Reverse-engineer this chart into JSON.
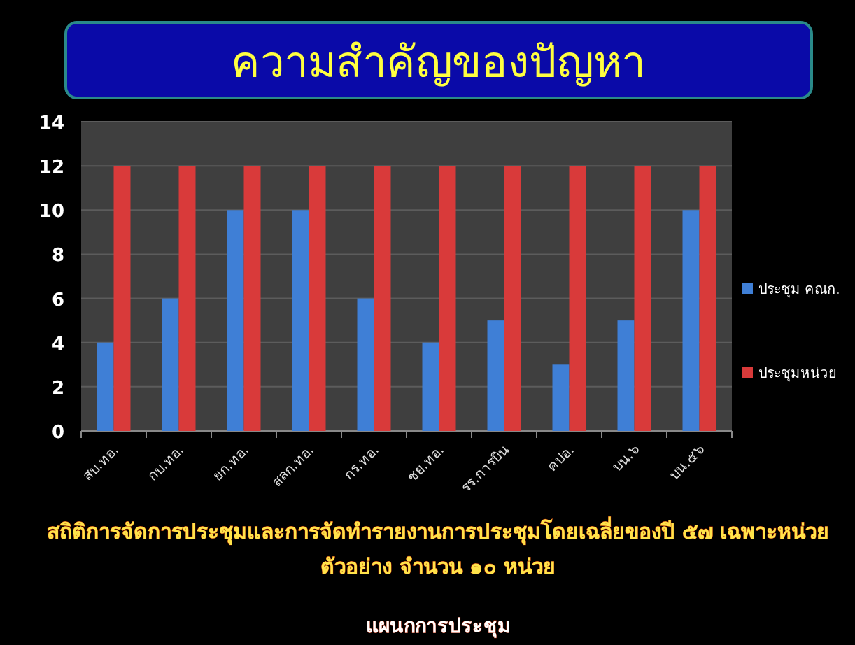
{
  "chart_data": {
    "type": "bar",
    "title": "ความสำคัญของปัญหา",
    "categories": [
      "สบ.ทอ.",
      "กบ.ทอ.",
      "ยก.ทอ.",
      "สลก.ทอ.",
      "กร.ทอ.",
      "ชย.ทอ.",
      "รร.การบิน",
      "คปอ.",
      "บน.๖",
      "บน.๕๖"
    ],
    "series": [
      {
        "name": "ประชุม คณก.",
        "color": "#3f7fd6",
        "values": [
          4,
          6,
          10,
          10,
          6,
          4,
          5,
          3,
          5,
          10
        ]
      },
      {
        "name": "ประชุมหน่วย",
        "color": "#d93a3a",
        "values": [
          12,
          12,
          12,
          12,
          12,
          12,
          12,
          12,
          12,
          12
        ]
      }
    ],
    "ylim": [
      0,
      14
    ],
    "yticks": [
      0,
      2,
      4,
      6,
      8,
      10,
      12,
      14
    ],
    "grid": "y",
    "legend": "right",
    "annotations": [
      "สถิติการจัดการประชุมและการจัดทำรายงานการประชุมโดยเฉลี่ยของปี ๕๗ เฉพาะหน่วย",
      "ตัวอย่าง จำนวน ๑๐ หน่วย",
      "แผนกการประชุม"
    ]
  }
}
